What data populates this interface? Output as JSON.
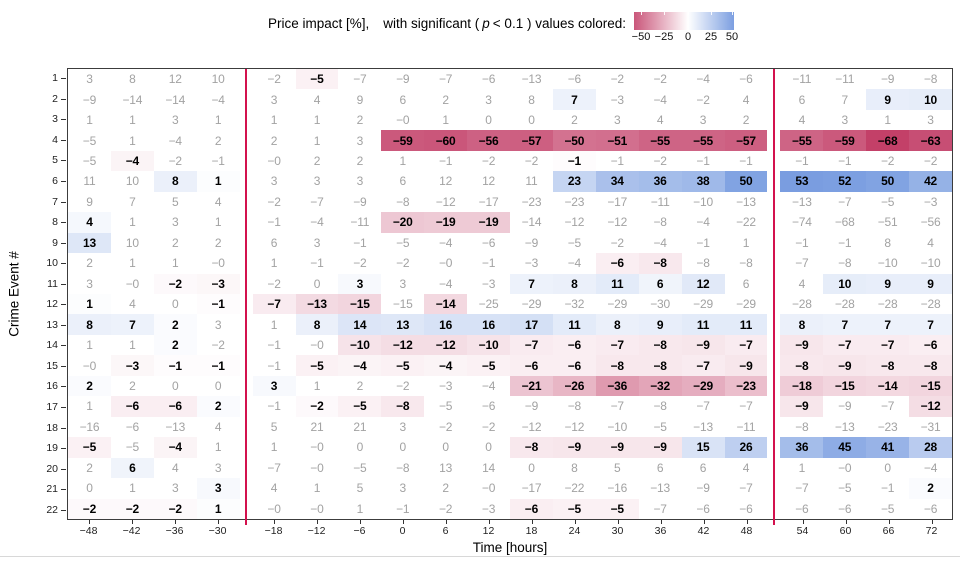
{
  "legend": {
    "label_part1": "Price impact [%],",
    "label_part2": "with significant (",
    "label_p": "p",
    "label_part3": "< 0.1 ) values colored:",
    "ticks": [
      "-50",
      "-25",
      "0",
      "25",
      "50"
    ]
  },
  "axes": {
    "x_title": "Time [hours]",
    "y_title": "Crime Event #"
  },
  "colors": {
    "negative_end": "#c13a64",
    "positive_end": "#4f7ed6",
    "divider_line": "#d3114d",
    "nonsig_text": "#a2a2a2",
    "sig_text": "#000000",
    "color_domain_max": 70
  },
  "chart_data": {
    "type": "heatmap",
    "title": "Price impact [%], with significant ( p < 0.1 ) values colored:",
    "xlabel": "Time [hours]",
    "ylabel": "Crime Event #",
    "colorbar_ticks": [
      -50,
      -25,
      0,
      25,
      50
    ],
    "x_ticks": [
      "-48",
      "-42",
      "-36",
      "-30",
      "-18",
      "-12",
      "-6",
      "0",
      "6",
      "12",
      "18",
      "24",
      "30",
      "36",
      "42",
      "48",
      "54",
      "60",
      "66",
      "72"
    ],
    "section_breaks_before_index": [
      4,
      16
    ],
    "divider_x_hours": [
      -24,
      51
    ],
    "rows": [
      {
        "label": "1",
        "values": [
          "3",
          "8",
          "12",
          "10",
          "-2",
          "-5",
          "-7",
          "-9",
          "-7",
          "-6",
          "-13",
          "-6",
          "-2",
          "-2",
          "-4",
          "-6",
          "-11",
          "-11",
          "-9",
          "-8"
        ],
        "significant": [
          0,
          0,
          0,
          0,
          0,
          1,
          0,
          0,
          0,
          0,
          0,
          0,
          0,
          0,
          0,
          0,
          0,
          0,
          0,
          0
        ]
      },
      {
        "label": "2",
        "values": [
          "-9",
          "-14",
          "-14",
          "-4",
          "3",
          "4",
          "9",
          "6",
          "2",
          "3",
          "8",
          "7",
          "-3",
          "-4",
          "-2",
          "4",
          "6",
          "7",
          "9",
          "10"
        ],
        "significant": [
          0,
          0,
          0,
          0,
          0,
          0,
          0,
          0,
          0,
          0,
          0,
          1,
          0,
          0,
          0,
          0,
          0,
          0,
          1,
          1
        ]
      },
      {
        "label": "3",
        "values": [
          "1",
          "1",
          "3",
          "1",
          "1",
          "1",
          "2",
          "-0",
          "1",
          "0",
          "0",
          "2",
          "3",
          "4",
          "3",
          "2",
          "4",
          "3",
          "1",
          "3"
        ],
        "significant": [
          0,
          0,
          0,
          0,
          0,
          0,
          0,
          0,
          0,
          0,
          0,
          0,
          0,
          0,
          0,
          0,
          0,
          0,
          0,
          0
        ]
      },
      {
        "label": "4",
        "values": [
          "-5",
          "1",
          "-4",
          "2",
          "2",
          "1",
          "3",
          "-59",
          "-60",
          "-56",
          "-57",
          "-50",
          "-51",
          "-55",
          "-55",
          "-57",
          "-55",
          "-59",
          "-68",
          "-63"
        ],
        "significant": [
          0,
          0,
          0,
          0,
          0,
          0,
          0,
          1,
          1,
          1,
          1,
          1,
          1,
          1,
          1,
          1,
          1,
          1,
          1,
          1
        ]
      },
      {
        "label": "5",
        "values": [
          "-5",
          "-4",
          "-2",
          "-1",
          "-0",
          "2",
          "2",
          "1",
          "-1",
          "-2",
          "-2",
          "-1",
          "-1",
          "-2",
          "-1",
          "-1",
          "-1",
          "-1",
          "-2",
          "-2"
        ],
        "significant": [
          0,
          1,
          0,
          0,
          0,
          0,
          0,
          0,
          0,
          0,
          0,
          1,
          0,
          0,
          0,
          0,
          0,
          0,
          0,
          0
        ]
      },
      {
        "label": "6",
        "values": [
          "11",
          "10",
          "8",
          "1",
          "3",
          "3",
          "3",
          "6",
          "12",
          "12",
          "11",
          "23",
          "34",
          "36",
          "38",
          "50",
          "53",
          "52",
          "50",
          "42"
        ],
        "significant": [
          0,
          0,
          1,
          1,
          0,
          0,
          0,
          0,
          0,
          0,
          0,
          1,
          1,
          1,
          1,
          1,
          1,
          1,
          1,
          1
        ]
      },
      {
        "label": "7",
        "values": [
          "9",
          "7",
          "5",
          "4",
          "-2",
          "-7",
          "-9",
          "-8",
          "-12",
          "-17",
          "-23",
          "-23",
          "-17",
          "-11",
          "-10",
          "-13",
          "-13",
          "-7",
          "-5",
          "-3"
        ],
        "significant": [
          0,
          0,
          0,
          0,
          0,
          0,
          0,
          0,
          0,
          0,
          0,
          0,
          0,
          0,
          0,
          0,
          0,
          0,
          0,
          0
        ]
      },
      {
        "label": "8",
        "values": [
          "4",
          "1",
          "3",
          "1",
          "-1",
          "-4",
          "-11",
          "-20",
          "-19",
          "-19",
          "-14",
          "-12",
          "-12",
          "-8",
          "-4",
          "-22",
          "-74",
          "-68",
          "-51",
          "-56"
        ],
        "significant": [
          1,
          0,
          0,
          0,
          0,
          0,
          0,
          1,
          1,
          1,
          0,
          0,
          0,
          0,
          0,
          0,
          0,
          0,
          0,
          0
        ]
      },
      {
        "label": "9",
        "values": [
          "13",
          "10",
          "2",
          "2",
          "6",
          "3",
          "-1",
          "-5",
          "-4",
          "-6",
          "-9",
          "-5",
          "-2",
          "-4",
          "-1",
          "1",
          "-1",
          "-1",
          "8",
          "4"
        ],
        "significant": [
          1,
          0,
          0,
          0,
          0,
          0,
          0,
          0,
          0,
          0,
          0,
          0,
          0,
          0,
          0,
          0,
          0,
          0,
          0,
          0
        ]
      },
      {
        "label": "10",
        "values": [
          "2",
          "1",
          "1",
          "-0",
          "1",
          "-1",
          "-2",
          "-2",
          "-0",
          "-1",
          "-3",
          "-4",
          "-6",
          "-8",
          "-8",
          "-8",
          "-7",
          "-8",
          "-10",
          "-10"
        ],
        "significant": [
          0,
          0,
          0,
          0,
          0,
          0,
          0,
          0,
          0,
          0,
          0,
          0,
          1,
          1,
          0,
          0,
          0,
          0,
          0,
          0
        ]
      },
      {
        "label": "11",
        "values": [
          "3",
          "-0",
          "-2",
          "-3",
          "-2",
          "0",
          "3",
          "3",
          "-4",
          "-3",
          "7",
          "8",
          "11",
          "6",
          "12",
          "6",
          "4",
          "10",
          "9",
          "9"
        ],
        "significant": [
          0,
          0,
          1,
          1,
          0,
          0,
          1,
          0,
          0,
          0,
          1,
          1,
          1,
          1,
          1,
          0,
          0,
          1,
          1,
          1
        ]
      },
      {
        "label": "12",
        "values": [
          "1",
          "4",
          "0",
          "-1",
          "-7",
          "-13",
          "-15",
          "-15",
          "-14",
          "-25",
          "-29",
          "-32",
          "-29",
          "-30",
          "-29",
          "-29",
          "-28",
          "-28",
          "-28",
          "-28"
        ],
        "significant": [
          1,
          0,
          0,
          1,
          1,
          1,
          1,
          0,
          1,
          0,
          0,
          0,
          0,
          0,
          0,
          0,
          0,
          0,
          0,
          0
        ]
      },
      {
        "label": "13",
        "values": [
          "8",
          "7",
          "2",
          "3",
          "1",
          "8",
          "14",
          "13",
          "16",
          "16",
          "17",
          "11",
          "8",
          "9",
          "11",
          "11",
          "8",
          "7",
          "7",
          "7"
        ],
        "significant": [
          1,
          1,
          1,
          0,
          0,
          1,
          1,
          1,
          1,
          1,
          1,
          1,
          1,
          1,
          1,
          1,
          1,
          1,
          1,
          1
        ]
      },
      {
        "label": "14",
        "values": [
          "1",
          "1",
          "2",
          "-2",
          "-1",
          "-0",
          "-10",
          "-12",
          "-12",
          "-10",
          "-7",
          "-6",
          "-7",
          "-8",
          "-9",
          "-7",
          "-9",
          "-7",
          "-7",
          "-6"
        ],
        "significant": [
          0,
          0,
          1,
          0,
          0,
          0,
          1,
          1,
          1,
          1,
          1,
          1,
          1,
          1,
          1,
          1,
          1,
          1,
          1,
          1
        ]
      },
      {
        "label": "15",
        "values": [
          "-0",
          "-3",
          "-1",
          "-1",
          "-1",
          "-5",
          "-4",
          "-5",
          "-4",
          "-5",
          "-6",
          "-6",
          "-8",
          "-8",
          "-7",
          "-9",
          "-8",
          "-9",
          "-8",
          "-8"
        ],
        "significant": [
          0,
          1,
          1,
          1,
          0,
          1,
          1,
          1,
          1,
          1,
          1,
          1,
          1,
          1,
          1,
          1,
          1,
          1,
          1,
          1
        ]
      },
      {
        "label": "16",
        "values": [
          "2",
          "2",
          "0",
          "0",
          "3",
          "1",
          "2",
          "-2",
          "-3",
          "-4",
          "-21",
          "-26",
          "-36",
          "-32",
          "-29",
          "-23",
          "-18",
          "-15",
          "-14",
          "-15"
        ],
        "significant": [
          1,
          0,
          0,
          0,
          1,
          0,
          0,
          0,
          0,
          0,
          1,
          1,
          1,
          1,
          1,
          1,
          1,
          1,
          1,
          1
        ]
      },
      {
        "label": "17",
        "values": [
          "1",
          "-6",
          "-6",
          "2",
          "-1",
          "-2",
          "-5",
          "-8",
          "-5",
          "-6",
          "-9",
          "-8",
          "-7",
          "-8",
          "-7",
          "-7",
          "-9",
          "-9",
          "-7",
          "-12"
        ],
        "significant": [
          0,
          1,
          1,
          1,
          0,
          1,
          1,
          1,
          0,
          0,
          0,
          0,
          0,
          0,
          0,
          0,
          1,
          0,
          0,
          1
        ]
      },
      {
        "label": "18",
        "values": [
          "-16",
          "-6",
          "-13",
          "4",
          "5",
          "21",
          "21",
          "3",
          "-2",
          "-2",
          "-12",
          "-12",
          "-10",
          "-5",
          "-13",
          "-11",
          "-8",
          "-13",
          "-23",
          "-31"
        ],
        "significant": [
          0,
          0,
          0,
          0,
          0,
          0,
          0,
          0,
          0,
          0,
          0,
          0,
          0,
          0,
          0,
          0,
          0,
          0,
          0,
          0
        ]
      },
      {
        "label": "19",
        "values": [
          "-5",
          "-5",
          "-4",
          "1",
          "1",
          "-0",
          "0",
          "0",
          "0",
          "0",
          "-8",
          "-9",
          "-9",
          "-9",
          "15",
          "26",
          "36",
          "45",
          "41",
          "28"
        ],
        "significant": [
          1,
          0,
          1,
          0,
          0,
          0,
          0,
          0,
          0,
          0,
          1,
          1,
          1,
          1,
          1,
          1,
          1,
          1,
          1,
          1
        ]
      },
      {
        "label": "20",
        "values": [
          "2",
          "6",
          "4",
          "3",
          "-7",
          "-0",
          "-5",
          "-8",
          "13",
          "14",
          "0",
          "8",
          "5",
          "6",
          "6",
          "4",
          "1",
          "-0",
          "0",
          "-4"
        ],
        "significant": [
          0,
          1,
          0,
          0,
          0,
          0,
          0,
          0,
          0,
          0,
          0,
          0,
          0,
          0,
          0,
          0,
          0,
          0,
          0,
          0
        ]
      },
      {
        "label": "21",
        "values": [
          "0",
          "1",
          "3",
          "3",
          "4",
          "1",
          "5",
          "3",
          "2",
          "-0",
          "-17",
          "-22",
          "-16",
          "-13",
          "-9",
          "-7",
          "-7",
          "-5",
          "-1",
          "2"
        ],
        "significant": [
          0,
          0,
          0,
          1,
          0,
          0,
          0,
          0,
          0,
          0,
          0,
          0,
          0,
          0,
          0,
          0,
          0,
          0,
          0,
          1
        ]
      },
      {
        "label": "22",
        "values": [
          "-2",
          "-2",
          "-2",
          "1",
          "-0",
          "-0",
          "1",
          "-1",
          "-2",
          "-3",
          "-6",
          "-5",
          "-5",
          "-7",
          "-6",
          "-6",
          "-6",
          "-6",
          "-5",
          "-6"
        ],
        "significant": [
          1,
          1,
          1,
          1,
          0,
          0,
          0,
          0,
          0,
          0,
          1,
          1,
          1,
          0,
          0,
          0,
          0,
          0,
          0,
          0
        ]
      }
    ]
  }
}
